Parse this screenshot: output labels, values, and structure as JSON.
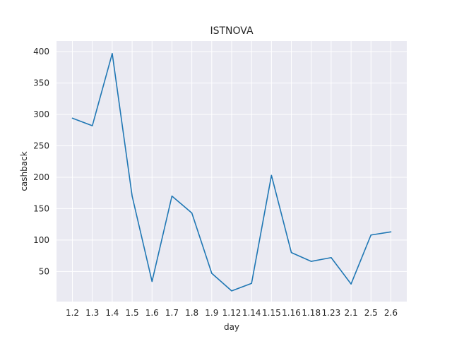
{
  "chart_data": {
    "type": "line",
    "title": "ISTNOVA",
    "xlabel": "day",
    "ylabel": "cashback",
    "categories": [
      "1.2",
      "1.3",
      "1.4",
      "1.5",
      "1.6",
      "1.7",
      "1.8",
      "1.9",
      "1.12",
      "1.14",
      "1.15",
      "1.16",
      "1.18",
      "1.23",
      "2.1",
      "2.5",
      "2.6"
    ],
    "series": [
      {
        "values": [
          294,
          282,
          397,
          170,
          34,
          170,
          143,
          47,
          19,
          31,
          203,
          80,
          66,
          72,
          30,
          108,
          113
        ],
        "color": "#1f77b4"
      }
    ],
    "ylim": [
      2,
      417
    ],
    "yticks": [
      50,
      100,
      150,
      200,
      250,
      300,
      350,
      400
    ],
    "grid": true,
    "background": "#eaeaf2",
    "legend": "none"
  }
}
